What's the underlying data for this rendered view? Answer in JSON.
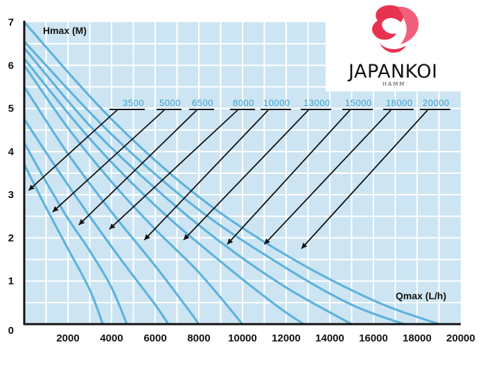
{
  "logo": {
    "name": "JAPANKOI",
    "subtitle": "HAMM"
  },
  "chart_data": {
    "type": "line",
    "ylabel": "Hmax (M)",
    "xlabel": "Qmax (L/h)",
    "xlim": [
      0,
      20000
    ],
    "ylim": [
      0,
      7
    ],
    "x_ticks": [
      2000,
      4000,
      6000,
      8000,
      10000,
      12000,
      14000,
      16000,
      18000,
      20000
    ],
    "y_ticks": [
      0,
      1,
      2,
      3,
      4,
      5,
      6,
      7
    ],
    "grid": true,
    "colors": {
      "background": "#cde5f2",
      "grid": "#ffffff",
      "curve": "#5fb2dc",
      "label": "#3a9fd0",
      "axis": "#111111"
    },
    "series": [
      {
        "name": "3500",
        "values": [
          [
            0,
            3.7
          ],
          [
            1000,
            2.7
          ],
          [
            2000,
            1.75
          ],
          [
            3000,
            0.8
          ],
          [
            3600,
            0.0
          ]
        ]
      },
      {
        "name": "5000",
        "values": [
          [
            0,
            4.2
          ],
          [
            1000,
            3.3
          ],
          [
            2000,
            2.45
          ],
          [
            3000,
            1.7
          ],
          [
            4000,
            0.85
          ],
          [
            4700,
            0.0
          ]
        ]
      },
      {
        "name": "6500",
        "values": [
          [
            0,
            4.75
          ],
          [
            1500,
            3.6
          ],
          [
            3000,
            2.5
          ],
          [
            4500,
            1.45
          ],
          [
            6000,
            0.45
          ],
          [
            6600,
            0.0
          ]
        ]
      },
      {
        "name": "8000",
        "values": [
          [
            0,
            5.5
          ],
          [
            2000,
            3.95
          ],
          [
            4000,
            2.6
          ],
          [
            6000,
            1.35
          ],
          [
            7500,
            0.35
          ],
          [
            8000,
            0.0
          ]
        ]
      },
      {
        "name": "10000",
        "values": [
          [
            0,
            6.0
          ],
          [
            2000,
            4.55
          ],
          [
            4000,
            3.3
          ],
          [
            6000,
            2.2
          ],
          [
            8000,
            1.2
          ],
          [
            10000,
            0.0
          ]
        ]
      },
      {
        "name": "13000",
        "values": [
          [
            0,
            6.15
          ],
          [
            3000,
            4.3
          ],
          [
            6000,
            2.75
          ],
          [
            9000,
            1.45
          ],
          [
            11500,
            0.45
          ],
          [
            12800,
            0.0
          ]
        ]
      },
      {
        "name": "15000",
        "values": [
          [
            0,
            6.4
          ],
          [
            3000,
            4.6
          ],
          [
            6000,
            3.15
          ],
          [
            9000,
            1.9
          ],
          [
            12000,
            0.85
          ],
          [
            15000,
            0.0
          ]
        ]
      },
      {
        "name": "18000",
        "values": [
          [
            0,
            6.55
          ],
          [
            4000,
            4.4
          ],
          [
            8000,
            2.65
          ],
          [
            12000,
            1.3
          ],
          [
            15000,
            0.45
          ],
          [
            17400,
            0.0
          ]
        ]
      },
      {
        "name": "20000",
        "values": [
          [
            0,
            7.0
          ],
          [
            4000,
            4.75
          ],
          [
            8000,
            2.95
          ],
          [
            12000,
            1.6
          ],
          [
            16000,
            0.55
          ],
          [
            19000,
            0.0
          ]
        ]
      }
    ],
    "annotations": [
      {
        "series": "3500",
        "point": [
          200,
          3.1
        ]
      },
      {
        "series": "5000",
        "point": [
          1300,
          2.6
        ]
      },
      {
        "series": "6500",
        "point": [
          2500,
          2.3
        ]
      },
      {
        "series": "8000",
        "point": [
          3900,
          2.2
        ]
      },
      {
        "series": "10000",
        "point": [
          5500,
          1.95
        ]
      },
      {
        "series": "13000",
        "point": [
          7300,
          1.95
        ]
      },
      {
        "series": "15000",
        "point": [
          9300,
          1.85
        ]
      },
      {
        "series": "18000",
        "point": [
          11000,
          1.85
        ]
      },
      {
        "series": "20000",
        "point": [
          12700,
          1.75
        ]
      }
    ]
  }
}
